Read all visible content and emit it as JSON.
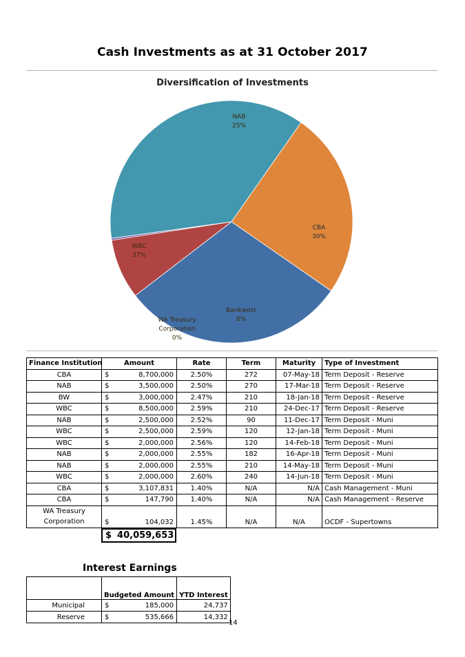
{
  "page": {
    "title": "Cash Investments as at 31 October 2017",
    "page_number": "14"
  },
  "chart_data": {
    "type": "pie",
    "title": "Diversification of Investments",
    "slices": [
      {
        "name": "NAB",
        "label": "25%",
        "value": 25,
        "color": "#e0863a"
      },
      {
        "name": "CBA",
        "label": "30%",
        "value": 30,
        "color": "#4270a6"
      },
      {
        "name": "Bankwest",
        "label": "8%",
        "value": 8,
        "color": "#b04443"
      },
      {
        "name": "WA Treasury Corporation",
        "label": "0%",
        "value": 0.26,
        "color": "#7d5ea0"
      },
      {
        "name": "WBC",
        "label": "37%",
        "value": 37,
        "color": "#4397ae"
      }
    ]
  },
  "investments": {
    "headers": [
      "Finance Institution",
      "Amount",
      "Rate",
      "Term",
      "Maturity",
      "Type of Investment"
    ],
    "currency_symbol": "$",
    "rows": [
      {
        "institution": "CBA",
        "amount": "8,700,000",
        "rate": "2.50%",
        "term": "272",
        "maturity": "07-May-18",
        "type": "Term Deposit - Reserve"
      },
      {
        "institution": "NAB",
        "amount": "3,500,000",
        "rate": "2.50%",
        "term": "270",
        "maturity": "17-Mar-18",
        "type": "Term Deposit - Reserve"
      },
      {
        "institution": "BW",
        "amount": "3,000,000",
        "rate": "2.47%",
        "term": "210",
        "maturity": "18-Jan-18",
        "type": "Term Deposit - Reserve"
      },
      {
        "institution": "WBC",
        "amount": "8,500,000",
        "rate": "2.59%",
        "term": "210",
        "maturity": "24-Dec-17",
        "type": "Term Deposit - Reserve"
      },
      {
        "institution": "NAB",
        "amount": "2,500,000",
        "rate": "2.52%",
        "term": "90",
        "maturity": "11-Dec-17",
        "type": "Term Deposit - Muni"
      },
      {
        "institution": "WBC",
        "amount": "2,500,000",
        "rate": "2.59%",
        "term": "120",
        "maturity": "12-Jan-18",
        "type": "Term Deposit - Muni"
      },
      {
        "institution": "WBC",
        "amount": "2,000,000",
        "rate": "2.56%",
        "term": "120",
        "maturity": "14-Feb-18",
        "type": "Term Deposit - Muni"
      },
      {
        "institution": "NAB",
        "amount": "2,000,000",
        "rate": "2.55%",
        "term": "182",
        "maturity": "16-Apr-18",
        "type": "Term Deposit - Muni"
      },
      {
        "institution": "NAB",
        "amount": "2,000,000",
        "rate": "2.55%",
        "term": "210",
        "maturity": "14-May-18",
        "type": "Term Deposit - Muni"
      },
      {
        "institution": "WBC",
        "amount": "2,000,000",
        "rate": "2.60%",
        "term": "240",
        "maturity": "14-Jun-18",
        "type": "Term Deposit - Muni"
      },
      {
        "institution": "CBA",
        "amount": "3,107,831",
        "rate": "1.40%",
        "term": "N/A",
        "maturity": "N/A",
        "type": "Cash Management - Muni"
      },
      {
        "institution": "CBA",
        "amount": "147,790",
        "rate": "1.40%",
        "term": "N/A",
        "maturity": "N/A",
        "type": "Cash Management - Reserve"
      }
    ],
    "last_row": {
      "institution_line1": "WA Treasury",
      "institution_line2": "Corporation",
      "amount": "104,032",
      "rate": "1.45%",
      "term": "N/A",
      "maturity": "N/A",
      "type": "OCDF - Supertowns"
    },
    "total": "40,059,653"
  },
  "interest": {
    "title": "Interest Earnings",
    "headers": [
      "Budgeted Amount",
      "YTD Interest"
    ],
    "rows": [
      {
        "label": "Municipal",
        "budgeted": "185,000",
        "ytd": "24,737"
      },
      {
        "label": "Reserve",
        "budgeted": "535,666",
        "ytd": "14,332"
      }
    ]
  }
}
